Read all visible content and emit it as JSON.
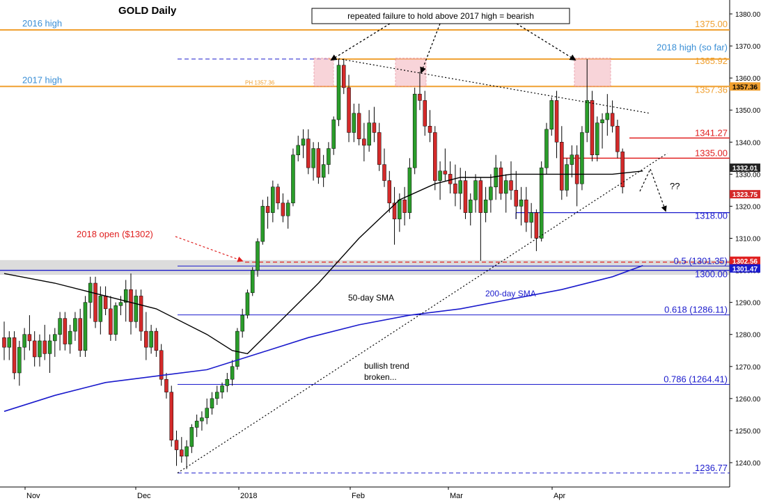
{
  "chart_data": {
    "type": "candlestick",
    "title": "GOLD Daily",
    "instrument": "GOLD",
    "timeframe": "Daily",
    "y_range": [
      1232,
      1386
    ],
    "y_ticks": [
      1240,
      1250,
      1260,
      1270,
      1280,
      1290,
      1300,
      1310,
      1320,
      1330,
      1340,
      1350,
      1360,
      1370,
      1380
    ],
    "x_labels": [
      "Nov",
      "Dec",
      "2018",
      "Feb",
      "Mar",
      "Apr"
    ],
    "candles": [
      {
        "o": 1279,
        "h": 1284,
        "l": 1272,
        "c": 1276
      },
      {
        "o": 1276,
        "h": 1281,
        "l": 1272,
        "c": 1279
      },
      {
        "o": 1279,
        "h": 1281,
        "l": 1266,
        "c": 1268
      },
      {
        "o": 1268,
        "h": 1278,
        "l": 1264,
        "c": 1276
      },
      {
        "o": 1276,
        "h": 1282,
        "l": 1272,
        "c": 1280
      },
      {
        "o": 1280,
        "h": 1286,
        "l": 1275,
        "c": 1278
      },
      {
        "o": 1278,
        "h": 1281,
        "l": 1270,
        "c": 1273
      },
      {
        "o": 1273,
        "h": 1280,
        "l": 1270,
        "c": 1278
      },
      {
        "o": 1278,
        "h": 1283,
        "l": 1272,
        "c": 1274
      },
      {
        "o": 1274,
        "h": 1280,
        "l": 1268,
        "c": 1278
      },
      {
        "o": 1278,
        "h": 1282,
        "l": 1273,
        "c": 1280
      },
      {
        "o": 1280,
        "h": 1287,
        "l": 1275,
        "c": 1285
      },
      {
        "o": 1285,
        "h": 1287,
        "l": 1275,
        "c": 1277
      },
      {
        "o": 1277,
        "h": 1283,
        "l": 1274,
        "c": 1281
      },
      {
        "o": 1281,
        "h": 1287,
        "l": 1278,
        "c": 1285
      },
      {
        "o": 1285,
        "h": 1288,
        "l": 1273,
        "c": 1275
      },
      {
        "o": 1275,
        "h": 1292,
        "l": 1273,
        "c": 1290
      },
      {
        "o": 1290,
        "h": 1298,
        "l": 1285,
        "c": 1296
      },
      {
        "o": 1296,
        "h": 1298,
        "l": 1282,
        "c": 1284
      },
      {
        "o": 1284,
        "h": 1295,
        "l": 1280,
        "c": 1292
      },
      {
        "o": 1292,
        "h": 1295,
        "l": 1286,
        "c": 1288
      },
      {
        "o": 1288,
        "h": 1292,
        "l": 1278,
        "c": 1280
      },
      {
        "o": 1280,
        "h": 1290,
        "l": 1278,
        "c": 1289
      },
      {
        "o": 1289,
        "h": 1292,
        "l": 1286,
        "c": 1290
      },
      {
        "o": 1290,
        "h": 1297,
        "l": 1284,
        "c": 1294
      },
      {
        "o": 1294,
        "h": 1299,
        "l": 1280,
        "c": 1284
      },
      {
        "o": 1284,
        "h": 1294,
        "l": 1282,
        "c": 1292
      },
      {
        "o": 1292,
        "h": 1294,
        "l": 1278,
        "c": 1281
      },
      {
        "o": 1281,
        "h": 1287,
        "l": 1272,
        "c": 1276
      },
      {
        "o": 1276,
        "h": 1283,
        "l": 1274,
        "c": 1281
      },
      {
        "o": 1281,
        "h": 1282,
        "l": 1273,
        "c": 1275
      },
      {
        "o": 1275,
        "h": 1277,
        "l": 1264,
        "c": 1266
      },
      {
        "o": 1266,
        "h": 1268,
        "l": 1260,
        "c": 1262
      },
      {
        "o": 1262,
        "h": 1264,
        "l": 1245,
        "c": 1247
      },
      {
        "o": 1247,
        "h": 1250,
        "l": 1239,
        "c": 1244
      },
      {
        "o": 1244,
        "h": 1248,
        "l": 1240,
        "c": 1242
      },
      {
        "o": 1242,
        "h": 1247,
        "l": 1238,
        "c": 1245
      },
      {
        "o": 1245,
        "h": 1252,
        "l": 1243,
        "c": 1251
      },
      {
        "o": 1251,
        "h": 1255,
        "l": 1248,
        "c": 1253
      },
      {
        "o": 1253,
        "h": 1256,
        "l": 1250,
        "c": 1254
      },
      {
        "o": 1254,
        "h": 1260,
        "l": 1252,
        "c": 1257
      },
      {
        "o": 1257,
        "h": 1262,
        "l": 1255,
        "c": 1260
      },
      {
        "o": 1260,
        "h": 1264,
        "l": 1258,
        "c": 1262
      },
      {
        "o": 1262,
        "h": 1265,
        "l": 1260,
        "c": 1264
      },
      {
        "o": 1264,
        "h": 1268,
        "l": 1262,
        "c": 1266
      },
      {
        "o": 1266,
        "h": 1272,
        "l": 1264,
        "c": 1270
      },
      {
        "o": 1270,
        "h": 1282,
        "l": 1269,
        "c": 1281
      },
      {
        "o": 1281,
        "h": 1288,
        "l": 1279,
        "c": 1286
      },
      {
        "o": 1286,
        "h": 1294,
        "l": 1285,
        "c": 1293
      },
      {
        "o": 1293,
        "h": 1301,
        "l": 1292,
        "c": 1300
      },
      {
        "o": 1300,
        "h": 1310,
        "l": 1298,
        "c": 1309
      },
      {
        "o": 1309,
        "h": 1322,
        "l": 1308,
        "c": 1320
      },
      {
        "o": 1320,
        "h": 1323,
        "l": 1313,
        "c": 1318
      },
      {
        "o": 1318,
        "h": 1328,
        "l": 1315,
        "c": 1326
      },
      {
        "o": 1326,
        "h": 1327,
        "l": 1319,
        "c": 1321
      },
      {
        "o": 1321,
        "h": 1324,
        "l": 1315,
        "c": 1317
      },
      {
        "o": 1317,
        "h": 1322,
        "l": 1313,
        "c": 1321
      },
      {
        "o": 1321,
        "h": 1338,
        "l": 1320,
        "c": 1336
      },
      {
        "o": 1336,
        "h": 1342,
        "l": 1334,
        "c": 1339
      },
      {
        "o": 1339,
        "h": 1344,
        "l": 1335,
        "c": 1341
      },
      {
        "o": 1341,
        "h": 1344,
        "l": 1330,
        "c": 1332
      },
      {
        "o": 1332,
        "h": 1340,
        "l": 1328,
        "c": 1338
      },
      {
        "o": 1338,
        "h": 1340,
        "l": 1327,
        "c": 1329
      },
      {
        "o": 1329,
        "h": 1336,
        "l": 1326,
        "c": 1333
      },
      {
        "o": 1333,
        "h": 1340,
        "l": 1330,
        "c": 1338
      },
      {
        "o": 1338,
        "h": 1348,
        "l": 1336,
        "c": 1347
      },
      {
        "o": 1347,
        "h": 1366,
        "l": 1345,
        "c": 1364
      },
      {
        "o": 1364,
        "h": 1366,
        "l": 1355,
        "c": 1357
      },
      {
        "o": 1357,
        "h": 1361,
        "l": 1340,
        "c": 1343
      },
      {
        "o": 1343,
        "h": 1352,
        "l": 1340,
        "c": 1349
      },
      {
        "o": 1349,
        "h": 1352,
        "l": 1339,
        "c": 1341
      },
      {
        "o": 1341,
        "h": 1346,
        "l": 1334,
        "c": 1339
      },
      {
        "o": 1339,
        "h": 1350,
        "l": 1337,
        "c": 1346
      },
      {
        "o": 1346,
        "h": 1351,
        "l": 1340,
        "c": 1343
      },
      {
        "o": 1343,
        "h": 1346,
        "l": 1331,
        "c": 1333
      },
      {
        "o": 1333,
        "h": 1338,
        "l": 1326,
        "c": 1328
      },
      {
        "o": 1328,
        "h": 1331,
        "l": 1318,
        "c": 1321
      },
      {
        "o": 1321,
        "h": 1326,
        "l": 1308,
        "c": 1316
      },
      {
        "o": 1316,
        "h": 1324,
        "l": 1312,
        "c": 1322
      },
      {
        "o": 1322,
        "h": 1326,
        "l": 1314,
        "c": 1318
      },
      {
        "o": 1318,
        "h": 1335,
        "l": 1316,
        "c": 1332
      },
      {
        "o": 1332,
        "h": 1357,
        "l": 1330,
        "c": 1355
      },
      {
        "o": 1355,
        "h": 1362,
        "l": 1350,
        "c": 1353
      },
      {
        "o": 1353,
        "h": 1356,
        "l": 1342,
        "c": 1345
      },
      {
        "o": 1345,
        "h": 1350,
        "l": 1340,
        "c": 1343
      },
      {
        "o": 1343,
        "h": 1345,
        "l": 1325,
        "c": 1328
      },
      {
        "o": 1328,
        "h": 1334,
        "l": 1322,
        "c": 1331
      },
      {
        "o": 1331,
        "h": 1338,
        "l": 1328,
        "c": 1330
      },
      {
        "o": 1330,
        "h": 1334,
        "l": 1324,
        "c": 1327
      },
      {
        "o": 1327,
        "h": 1333,
        "l": 1320,
        "c": 1324
      },
      {
        "o": 1324,
        "h": 1332,
        "l": 1319,
        "c": 1328
      },
      {
        "o": 1328,
        "h": 1331,
        "l": 1316,
        "c": 1318
      },
      {
        "o": 1318,
        "h": 1324,
        "l": 1314,
        "c": 1322
      },
      {
        "o": 1322,
        "h": 1330,
        "l": 1318,
        "c": 1328
      },
      {
        "o": 1328,
        "h": 1329,
        "l": 1303,
        "c": 1318
      },
      {
        "o": 1318,
        "h": 1326,
        "l": 1315,
        "c": 1322
      },
      {
        "o": 1322,
        "h": 1330,
        "l": 1318,
        "c": 1326
      },
      {
        "o": 1326,
        "h": 1336,
        "l": 1322,
        "c": 1332
      },
      {
        "o": 1332,
        "h": 1334,
        "l": 1322,
        "c": 1324
      },
      {
        "o": 1324,
        "h": 1330,
        "l": 1318,
        "c": 1328
      },
      {
        "o": 1328,
        "h": 1334,
        "l": 1322,
        "c": 1325
      },
      {
        "o": 1325,
        "h": 1331,
        "l": 1316,
        "c": 1320
      },
      {
        "o": 1320,
        "h": 1326,
        "l": 1314,
        "c": 1322
      },
      {
        "o": 1322,
        "h": 1326,
        "l": 1312,
        "c": 1315
      },
      {
        "o": 1315,
        "h": 1321,
        "l": 1310,
        "c": 1318
      },
      {
        "o": 1318,
        "h": 1319,
        "l": 1306,
        "c": 1310
      },
      {
        "o": 1310,
        "h": 1334,
        "l": 1309,
        "c": 1332
      },
      {
        "o": 1332,
        "h": 1346,
        "l": 1330,
        "c": 1344
      },
      {
        "o": 1344,
        "h": 1354,
        "l": 1342,
        "c": 1353
      },
      {
        "o": 1353,
        "h": 1356,
        "l": 1335,
        "c": 1340
      },
      {
        "o": 1340,
        "h": 1345,
        "l": 1322,
        "c": 1325
      },
      {
        "o": 1325,
        "h": 1335,
        "l": 1323,
        "c": 1333
      },
      {
        "o": 1333,
        "h": 1339,
        "l": 1329,
        "c": 1336
      },
      {
        "o": 1336,
        "h": 1339,
        "l": 1320,
        "c": 1327
      },
      {
        "o": 1327,
        "h": 1345,
        "l": 1325,
        "c": 1343
      },
      {
        "o": 1343,
        "h": 1365.92,
        "l": 1340,
        "c": 1353
      },
      {
        "o": 1353,
        "h": 1356,
        "l": 1334,
        "c": 1336
      },
      {
        "o": 1336,
        "h": 1348,
        "l": 1334,
        "c": 1346
      },
      {
        "o": 1346,
        "h": 1349,
        "l": 1338,
        "c": 1347
      },
      {
        "o": 1347,
        "h": 1355,
        "l": 1342,
        "c": 1349
      },
      {
        "o": 1349,
        "h": 1353,
        "l": 1343,
        "c": 1345
      },
      {
        "o": 1345,
        "h": 1347,
        "l": 1335,
        "c": 1337
      },
      {
        "o": 1337,
        "h": 1338,
        "l": 1324,
        "c": 1326
      }
    ],
    "sma50": [
      [
        0,
        1299
      ],
      [
        10,
        1296
      ],
      [
        30,
        1288
      ],
      [
        40,
        1280
      ],
      [
        45,
        1275
      ],
      [
        48,
        1274
      ],
      [
        55,
        1285
      ],
      [
        62,
        1296
      ],
      [
        70,
        1310
      ],
      [
        78,
        1322
      ],
      [
        85,
        1327
      ],
      [
        90,
        1329
      ],
      [
        96,
        1329
      ],
      [
        100,
        1330
      ],
      [
        108,
        1330
      ],
      [
        114,
        1330
      ],
      [
        120,
        1330
      ],
      [
        126,
        1331
      ]
    ],
    "sma200": [
      [
        0,
        1256
      ],
      [
        10,
        1261
      ],
      [
        20,
        1265
      ],
      [
        30,
        1267
      ],
      [
        40,
        1269
      ],
      [
        50,
        1274
      ],
      [
        60,
        1279
      ],
      [
        70,
        1283
      ],
      [
        80,
        1286
      ],
      [
        90,
        1288
      ],
      [
        100,
        1291
      ],
      [
        110,
        1294
      ],
      [
        120,
        1298
      ],
      [
        126,
        1301.5
      ]
    ],
    "levels": [
      {
        "label": "2016 high",
        "value": 1375
      },
      {
        "label": "2017 high",
        "value": 1357.36
      }
    ],
    "right_labels": [
      {
        "text": "1375.00",
        "value": 1375
      },
      {
        "text": "2018 high (so far)",
        "value": 1368.6
      },
      {
        "text": "1365.92",
        "value": 1365.92
      },
      {
        "text": "1357.36",
        "value": 1357.36
      },
      {
        "text": "1341.27",
        "value": 1341.27
      },
      {
        "text": "1335.00",
        "value": 1335
      },
      {
        "text": "1318.00",
        "value": 1318
      },
      {
        "text": "0.5 (1301.35)",
        "value": 1301.35
      },
      {
        "text": "1300.00",
        "value": 1300
      },
      {
        "text": "0.618 (1286.11)",
        "value": 1286.11
      },
      {
        "text": "0.786 (1264.41)",
        "value": 1264.41
      },
      {
        "text": "1236.77",
        "value": 1236.77
      }
    ],
    "axis_badges": [
      {
        "text": "1357.36",
        "value": 1357.36
      },
      {
        "text": "1332.01",
        "value": 1332.01
      },
      {
        "text": "1323.75",
        "value": 1323.75
      },
      {
        "text": "1302.56",
        "value": 1302.56
      },
      {
        "text": "1301.47",
        "value": 1301.47
      }
    ],
    "annotations": {
      "callout_box": "repeated failure to hold above 2017 high = bearish",
      "ph_label": "PH 1357.36",
      "open_label": "2018 open ($1302)",
      "sma50_label": "50-day SMA",
      "sma200_label": "200-day SMA",
      "trend_label_1": "bullish trend",
      "trend_label_2": "broken...",
      "question": "??"
    },
    "colors": {
      "bull": "#2a9d2a",
      "bear": "#d42a2a",
      "orange": "#f0a030",
      "blue_text": "#3a8fd6",
      "navy": "#1a1acc",
      "red_line": "#e02020"
    }
  }
}
